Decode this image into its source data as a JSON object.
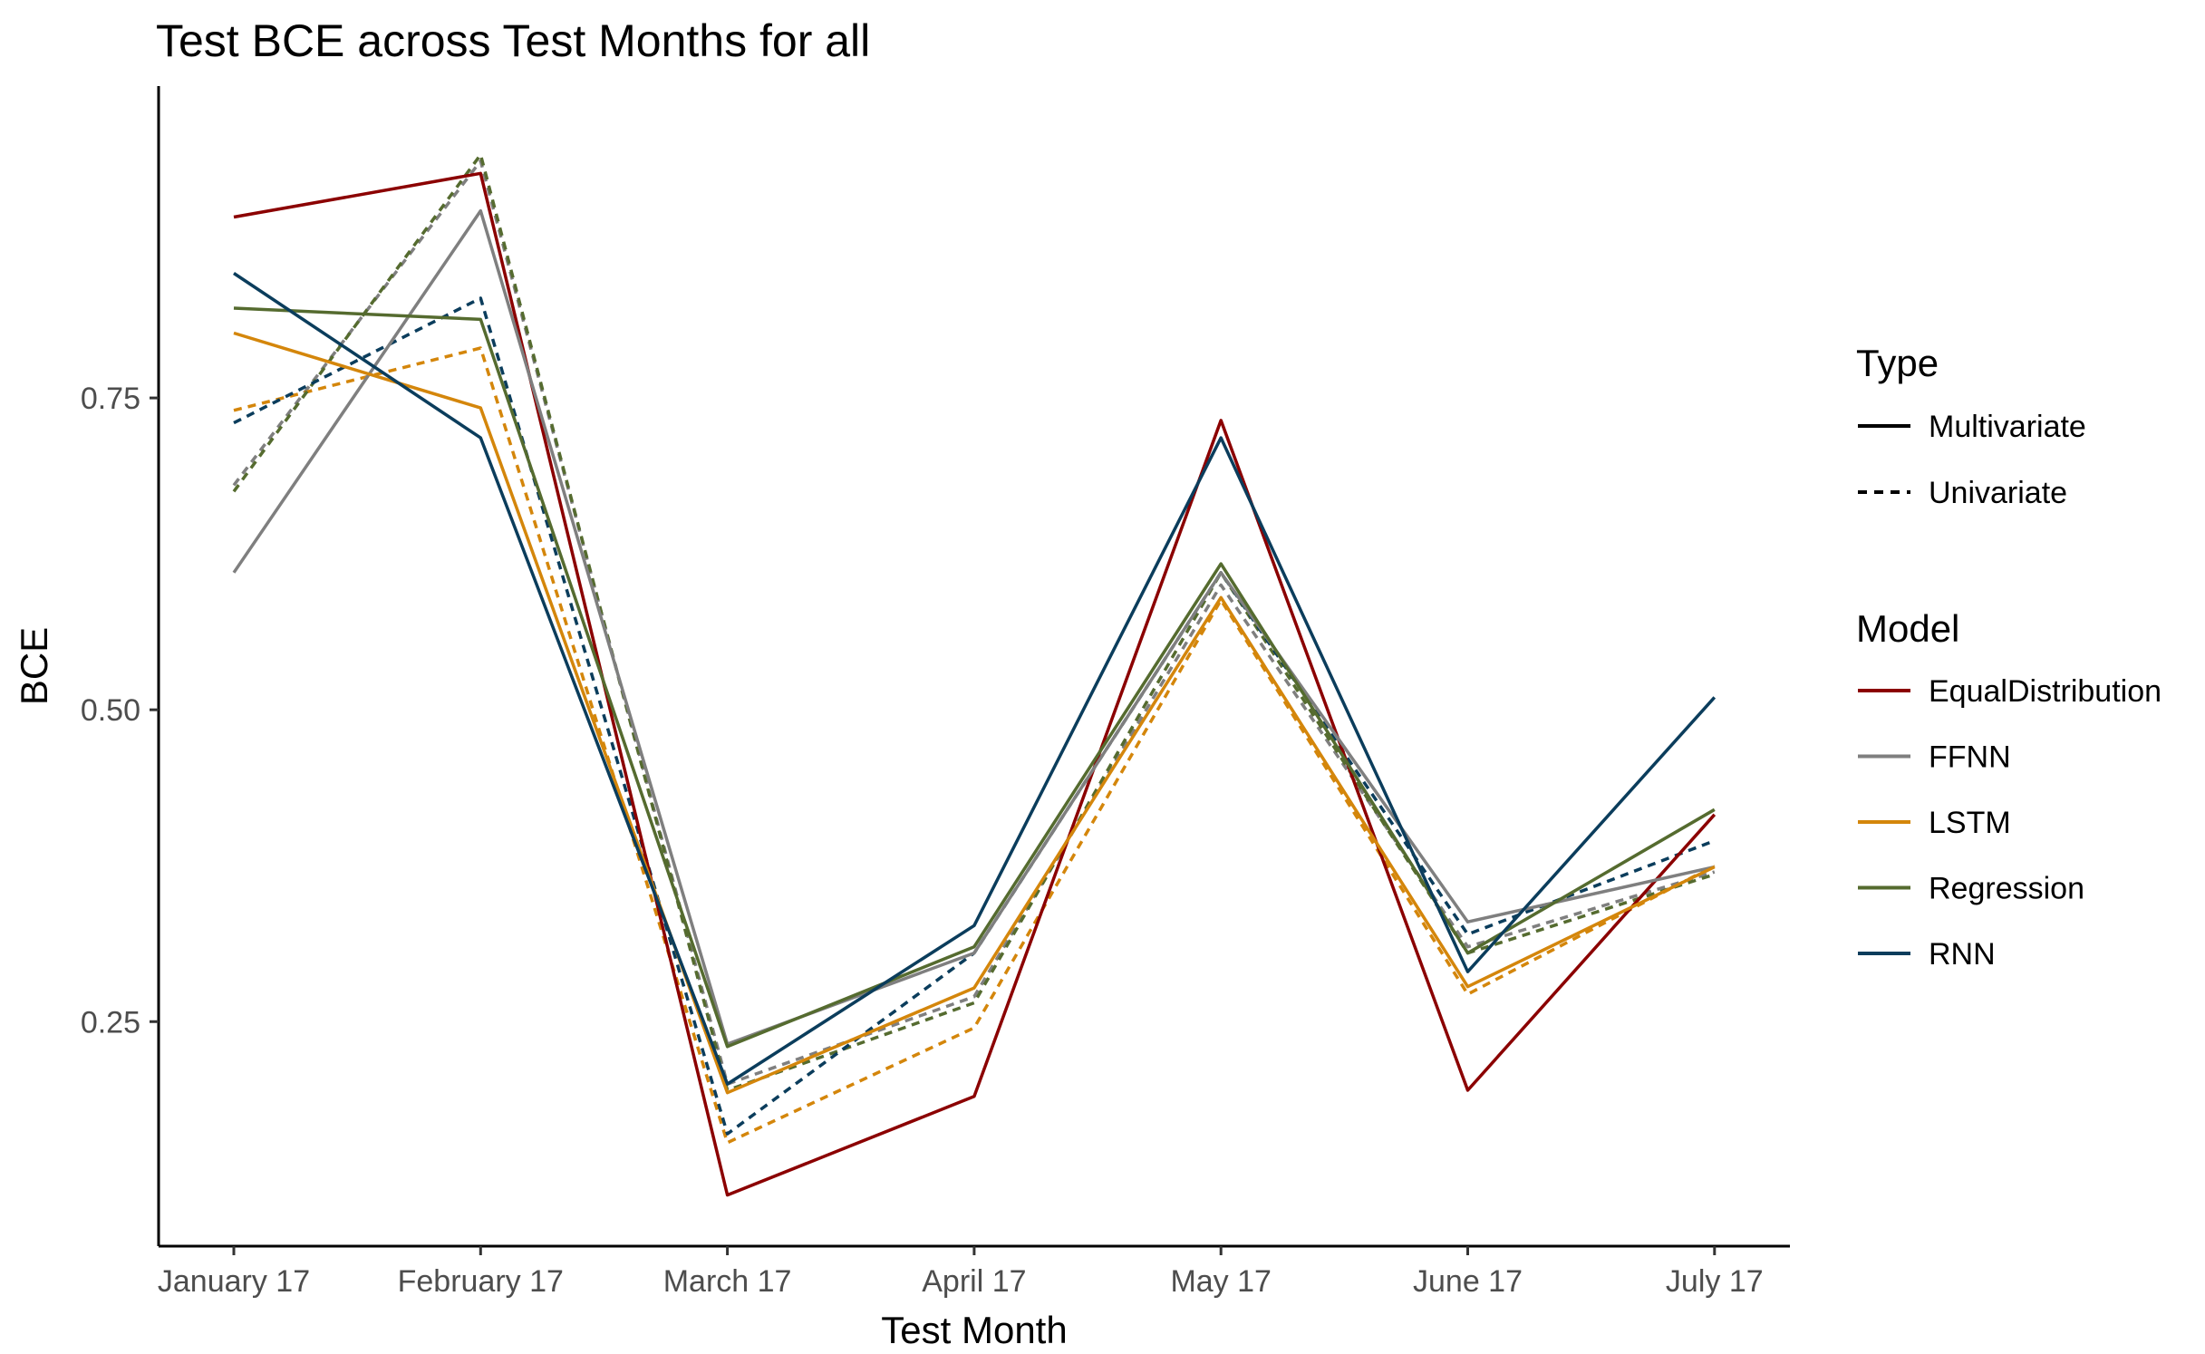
{
  "chart_data": {
    "type": "line",
    "title": "Test BCE across Test Months for all",
    "xlabel": "Test Month",
    "ylabel": "BCE",
    "categories": [
      "January 17",
      "February 17",
      "March 17",
      "April 17",
      "May 17",
      "June 17",
      "July 17"
    ],
    "ylim": [
      0.07,
      1.0
    ],
    "yticks": [
      0.25,
      0.5,
      0.75
    ],
    "ytick_labels": [
      "0.25",
      "0.50",
      "0.75"
    ],
    "grid": false,
    "legend_position": "right",
    "legend": {
      "type_title": "Type",
      "types": [
        {
          "label": "Multivariate",
          "dash": "solid"
        },
        {
          "label": "Univariate",
          "dash": "dashed"
        }
      ],
      "model_title": "Model",
      "models": [
        {
          "label": "EqualDistribution",
          "color": "#8b0000"
        },
        {
          "label": "FFNN",
          "color": "#7f7f7f"
        },
        {
          "label": "LSTM",
          "color": "#d4860b"
        },
        {
          "label": "Regression",
          "color": "#556b2f"
        },
        {
          "label": "RNN",
          "color": "#0b3d5c"
        }
      ]
    },
    "series": [
      {
        "name": "EqualDistribution",
        "type": "Multivariate",
        "values": [
          0.895,
          0.93,
          0.111,
          0.19,
          0.732,
          0.195,
          0.416
        ]
      },
      {
        "name": "FFNN",
        "type": "Multivariate",
        "values": [
          0.61,
          0.9,
          0.232,
          0.305,
          0.61,
          0.33,
          0.374
        ]
      },
      {
        "name": "FFNN",
        "type": "Univariate",
        "values": [
          0.68,
          0.94,
          0.2,
          0.27,
          0.6,
          0.31,
          0.37
        ]
      },
      {
        "name": "LSTM",
        "type": "Multivariate",
        "values": [
          0.802,
          0.742,
          0.193,
          0.277,
          0.59,
          0.278,
          0.374
        ]
      },
      {
        "name": "LSTM",
        "type": "Univariate",
        "values": [
          0.74,
          0.79,
          0.153,
          0.245,
          0.588,
          0.272,
          0.375
        ]
      },
      {
        "name": "Regression",
        "type": "Multivariate",
        "values": [
          0.822,
          0.813,
          0.23,
          0.31,
          0.617,
          0.305,
          0.42
        ]
      },
      {
        "name": "Regression",
        "type": "Univariate",
        "values": [
          0.675,
          0.945,
          0.195,
          0.265,
          0.61,
          0.305,
          0.368
        ]
      },
      {
        "name": "RNN",
        "type": "Multivariate",
        "values": [
          0.85,
          0.718,
          0.2,
          0.327,
          0.718,
          0.29,
          0.51
        ]
      },
      {
        "name": "RNN",
        "type": "Univariate",
        "values": [
          0.73,
          0.83,
          0.16,
          0.305,
          0.61,
          0.32,
          0.395
        ]
      }
    ]
  }
}
